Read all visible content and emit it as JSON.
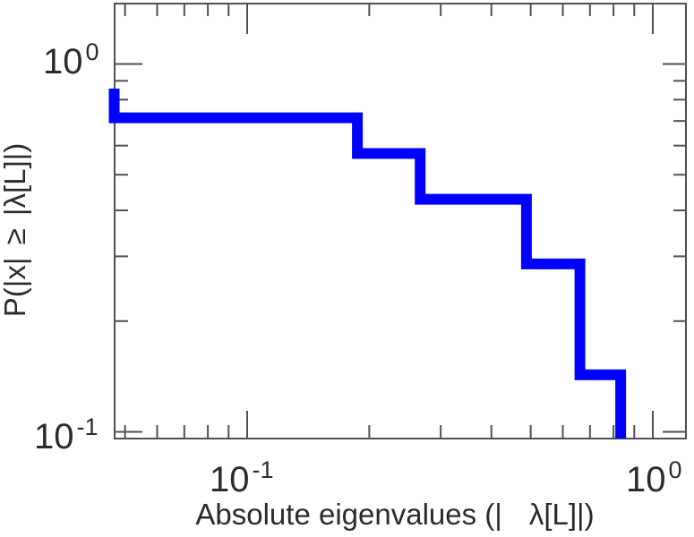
{
  "figure": {
    "background": "#ffffff",
    "frame_color": "#505050",
    "text_color": "#2b2b2b"
  },
  "chart_data": {
    "type": "line",
    "subtype": "ccdf-step",
    "title": "",
    "xlabel": "Absolute eigenvalues (| λ[L]|)",
    "xlabel_part1": "Absolute eigenvalues (|",
    "xlabel_part2": "λ[L]|)",
    "ylabel": "P(|x| ≥ |λ[L]|)",
    "xscale": "log",
    "yscale": "log",
    "xlim": [
      0.047,
      1.18
    ],
    "ylim": [
      0.096,
      1.46
    ],
    "grid": false,
    "legend": false,
    "frame_color": "#505050",
    "x_tick_labels": [
      {
        "base": "10",
        "exp": "-1",
        "value": 0.1
      },
      {
        "base": "10",
        "exp": "0",
        "value": 1
      }
    ],
    "y_tick_labels": [
      {
        "base": "10",
        "exp": "0",
        "value": 1
      },
      {
        "base": "10",
        "exp": "-1",
        "value": 0.1
      }
    ],
    "x_major_ticks": [
      0.1,
      1
    ],
    "x_minor_ticks": [
      0.05,
      0.06,
      0.07,
      0.08,
      0.09,
      0.2,
      0.3,
      0.4,
      0.5,
      0.6,
      0.7,
      0.8,
      0.9
    ],
    "y_major_ticks": [
      1,
      0.1
    ],
    "y_minor_ticks": [
      0.9,
      0.8,
      0.7,
      0.6,
      0.5,
      0.4,
      0.3,
      0.2
    ],
    "series": [
      {
        "name": "eigenvalue-ccdf",
        "color": "#0000ff",
        "line_width": 12,
        "n_total": 7,
        "eigenvalues_abs": [
          0.047,
          0.187,
          0.267,
          0.488,
          0.661,
          0.833
        ],
        "ccdf_levels": [
          0.857,
          0.714,
          0.571,
          0.429,
          0.286,
          0.143
        ],
        "step_points": [
          [
            0.047,
            0.857
          ],
          [
            0.047,
            0.714
          ],
          [
            0.187,
            0.714
          ],
          [
            0.187,
            0.571
          ],
          [
            0.267,
            0.571
          ],
          [
            0.267,
            0.429
          ],
          [
            0.488,
            0.429
          ],
          [
            0.488,
            0.286
          ],
          [
            0.661,
            0.286
          ],
          [
            0.661,
            0.143
          ],
          [
            0.833,
            0.143
          ],
          [
            0.833,
            0.096
          ]
        ]
      }
    ]
  }
}
